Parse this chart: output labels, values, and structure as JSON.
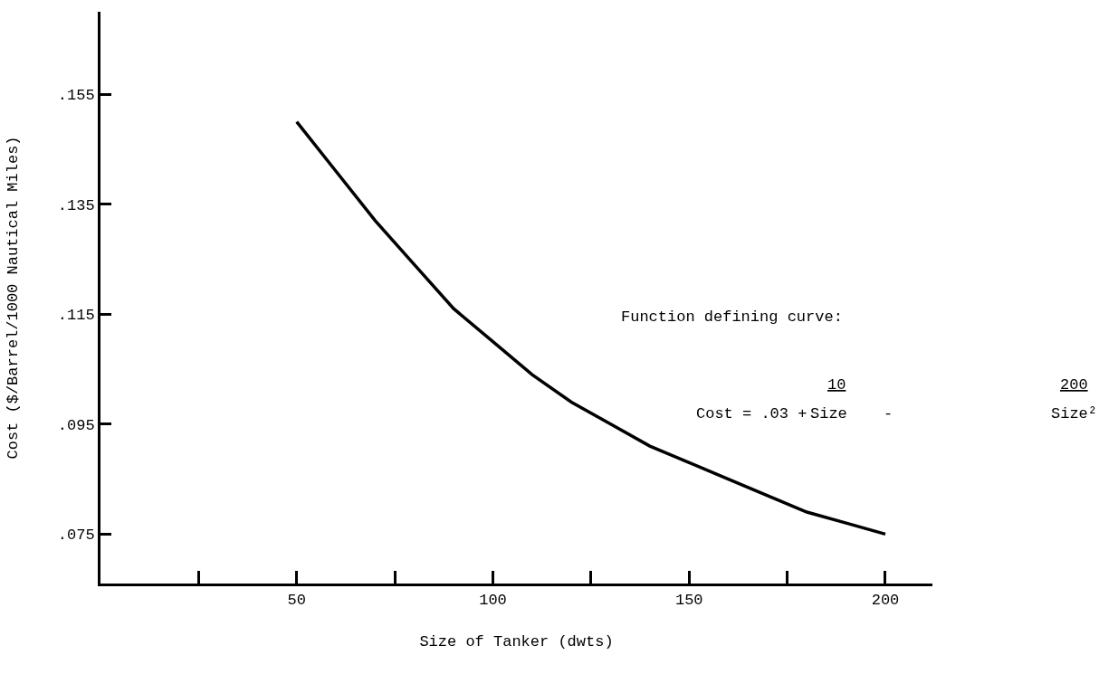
{
  "chart_data": {
    "type": "line",
    "xlabel": "Size of Tanker (dwts)",
    "ylabel": "Cost ($/Barrel/1000 Nautical Miles)",
    "x": [
      50,
      60,
      70,
      80,
      90,
      100,
      110,
      120,
      130,
      140,
      150,
      160,
      170,
      180,
      190,
      200
    ],
    "series": [
      {
        "color": "#000000",
        "values": [
          0.15,
          0.141,
          0.132,
          0.124,
          0.116,
          0.11,
          0.104,
          0.099,
          0.095,
          0.091,
          0.088,
          0.085,
          0.082,
          0.079,
          0.077,
          0.075
        ]
      }
    ],
    "xlim": [
      0,
      212
    ],
    "ylim": [
      0.066,
      0.17
    ],
    "xticks": [
      {
        "value": 25,
        "label": null
      },
      50,
      {
        "value": 75,
        "label": null
      },
      100,
      {
        "value": 125,
        "label": null
      },
      150,
      {
        "value": 175,
        "label": null
      },
      200
    ],
    "yticks": [
      {
        "value": 0.075,
        "label": ".075"
      },
      {
        "value": 0.095,
        "label": ".095"
      },
      {
        "value": 0.115,
        "label": ".115"
      },
      {
        "value": 0.135,
        "label": ".135"
      },
      {
        "value": 0.155,
        "label": ".155"
      }
    ],
    "annotations": [
      "Function defining curve:",
      "Cost = .03 +",
      "10",
      "Size",
      "-",
      "200",
      "Size²"
    ],
    "marker": "none",
    "line_style": "solid"
  }
}
